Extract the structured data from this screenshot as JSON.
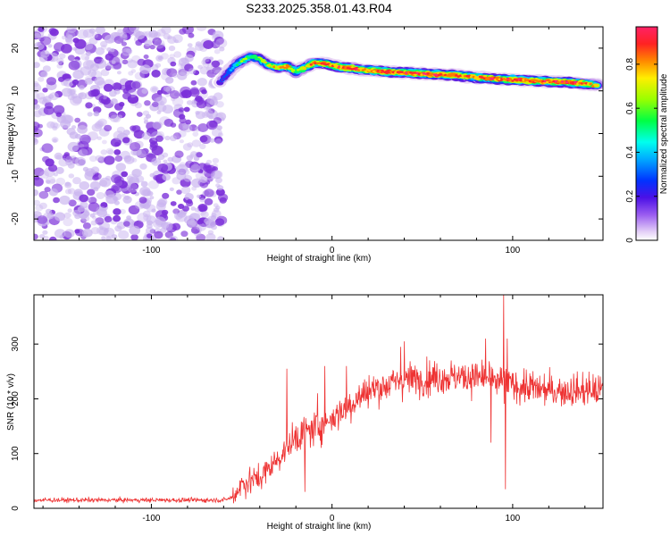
{
  "figure_title": "S233.2025.358.01.43.R04",
  "colors": {
    "snr_line": "#ee3333",
    "scatter_purple": "#7b2fd9",
    "scatter_light": "#c9b3ef",
    "colormap": [
      "#ffffff",
      "#e8d5f5",
      "#b98ef0",
      "#5b1fe0",
      "#0055ff",
      "#00c8ff",
      "#00ff66",
      "#b6ff00",
      "#ffd000",
      "#ff7a00",
      "#ff2a2a",
      "#ff2a7a"
    ]
  },
  "chart_data": [
    {
      "type": "heatmap",
      "xlabel": "Height of straight line (km)",
      "ylabel": "Frequency (Hz)",
      "xlim": [
        -165,
        150
      ],
      "ylim": [
        -25,
        25
      ],
      "x_ticks": [
        -100,
        0,
        100
      ],
      "y_ticks": [
        -20,
        -10,
        0,
        10,
        20
      ],
      "colorbar": {
        "label": "Normalized spectral amplitude",
        "range": [
          0,
          0.97
        ],
        "ticks": [
          0,
          0.2,
          0.4,
          0.6,
          0.8
        ]
      },
      "noise_region_x": [
        -165,
        -60
      ],
      "ridge": {
        "x": [
          -62,
          -55,
          -50,
          -45,
          -40,
          -35,
          -30,
          -25,
          -20,
          -15,
          -10,
          -5,
          0,
          5,
          10,
          15,
          20,
          30,
          40,
          50,
          60,
          70,
          80,
          90,
          100,
          110,
          120,
          130,
          140,
          148
        ],
        "freq": [
          12,
          15.5,
          17,
          18,
          17.5,
          16,
          15.5,
          15.8,
          14.5,
          15.5,
          16.5,
          16.5,
          16,
          15.5,
          15.3,
          15,
          14.8,
          14.5,
          14.3,
          14.0,
          13.8,
          13.6,
          13.2,
          12.8,
          12.6,
          12.4,
          12.2,
          12.0,
          11.7,
          11.2
        ],
        "amplitude": [
          0.3,
          0.45,
          0.55,
          0.6,
          0.6,
          0.65,
          0.7,
          0.85,
          0.55,
          0.7,
          0.8,
          0.85,
          0.8,
          0.85,
          0.9,
          0.85,
          0.8,
          0.92,
          0.85,
          0.9,
          0.88,
          0.85,
          0.8,
          0.9,
          0.85,
          0.9,
          0.88,
          0.9,
          0.85,
          0.6
        ]
      }
    },
    {
      "type": "line",
      "xlabel": "Height of straight line (km)",
      "ylabel": "SNR (10 * v/v)",
      "xlim": [
        -165,
        150
      ],
      "ylim": [
        0,
        390
      ],
      "x_ticks": [
        -100,
        0,
        100
      ],
      "y_ticks": [
        0,
        100,
        200,
        300
      ],
      "trend": {
        "x": [
          -165,
          -60,
          -55,
          -50,
          -40,
          -30,
          -20,
          -10,
          0,
          10,
          20,
          30,
          40,
          60,
          80,
          100,
          120,
          150
        ],
        "y": [
          15,
          15,
          20,
          45,
          55,
          90,
          130,
          145,
          165,
          190,
          215,
          225,
          235,
          240,
          240,
          225,
          215,
          215
        ]
      },
      "noise_amplitude": [
        8,
        60
      ],
      "spikes": [
        {
          "x": -25,
          "y": 255
        },
        {
          "x": -20,
          "y": 150
        },
        {
          "x": -8,
          "y": 210
        },
        {
          "x": -4,
          "y": 260
        },
        {
          "x": 8,
          "y": 260
        },
        {
          "x": 38,
          "y": 295
        },
        {
          "x": 40,
          "y": 305
        },
        {
          "x": 85,
          "y": 310
        },
        {
          "x": 95,
          "y": 390
        },
        {
          "x": 96,
          "y": 35
        },
        {
          "x": 97,
          "y": 310
        },
        {
          "x": 88,
          "y": 120
        },
        {
          "x": -15,
          "y": 30
        }
      ]
    }
  ]
}
